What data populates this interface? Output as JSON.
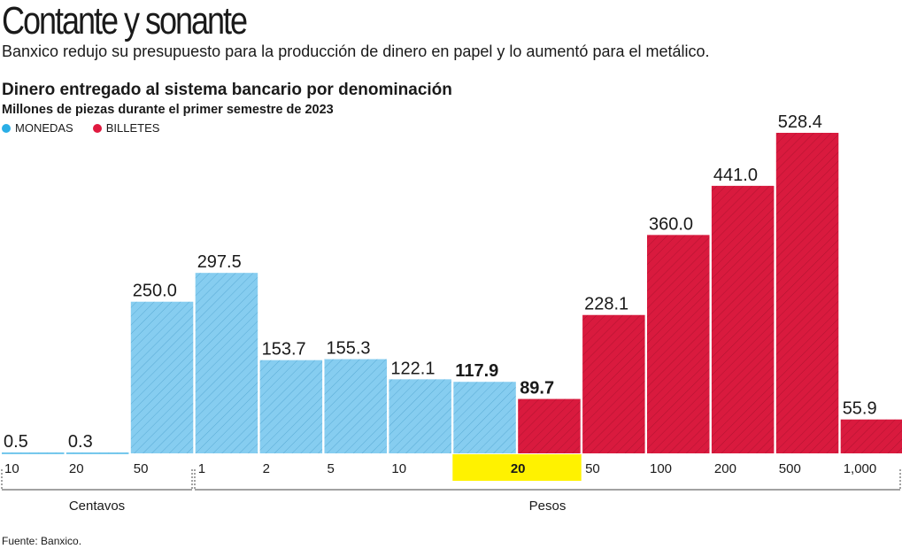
{
  "header": {
    "title": "Contante y sonante",
    "subtitle": "Banxico redujo su presupuesto para la producción de dinero en papel y lo aumentó para el metálico."
  },
  "chart_data": {
    "type": "bar",
    "title": "Dinero entregado al sistema bancario por denominación",
    "subtitle": "Millones de piezas durante el primer semestre de 2023",
    "legend": [
      {
        "name": "MONEDAS",
        "color": "#5bbde9"
      },
      {
        "name": "BILLETES",
        "color": "#e0193f"
      }
    ],
    "categories": [
      "10",
      "20",
      "50",
      "1",
      "2",
      "5",
      "10",
      "20",
      "20",
      "50",
      "100",
      "200",
      "500",
      "1,000"
    ],
    "values": [
      0.5,
      0.3,
      250.0,
      297.5,
      153.7,
      155.3,
      122.1,
      117.9,
      89.7,
      228.1,
      360.0,
      441.0,
      528.4,
      55.9
    ],
    "value_labels": [
      "0.5",
      "0.3",
      "250.0",
      "297.5",
      "153.7",
      "155.3",
      "122.1",
      "117.9",
      "89.7",
      "228.1",
      "360.0",
      "441.0",
      "528.4",
      "55.9"
    ],
    "series_of_bar": [
      "MONEDAS",
      "MONEDAS",
      "MONEDAS",
      "MONEDAS",
      "MONEDAS",
      "MONEDAS",
      "MONEDAS",
      "MONEDAS",
      "BILLETES",
      "BILLETES",
      "BILLETES",
      "BILLETES",
      "BILLETES",
      "BILLETES"
    ],
    "highlight_label": "20",
    "highlight_color": "#fff200",
    "groups": [
      {
        "label": "Centavos"
      },
      {
        "label": "Pesos"
      }
    ],
    "ylim": [
      0,
      560
    ],
    "grid": false
  },
  "footer": {
    "source": "Fuente: Banxico."
  }
}
